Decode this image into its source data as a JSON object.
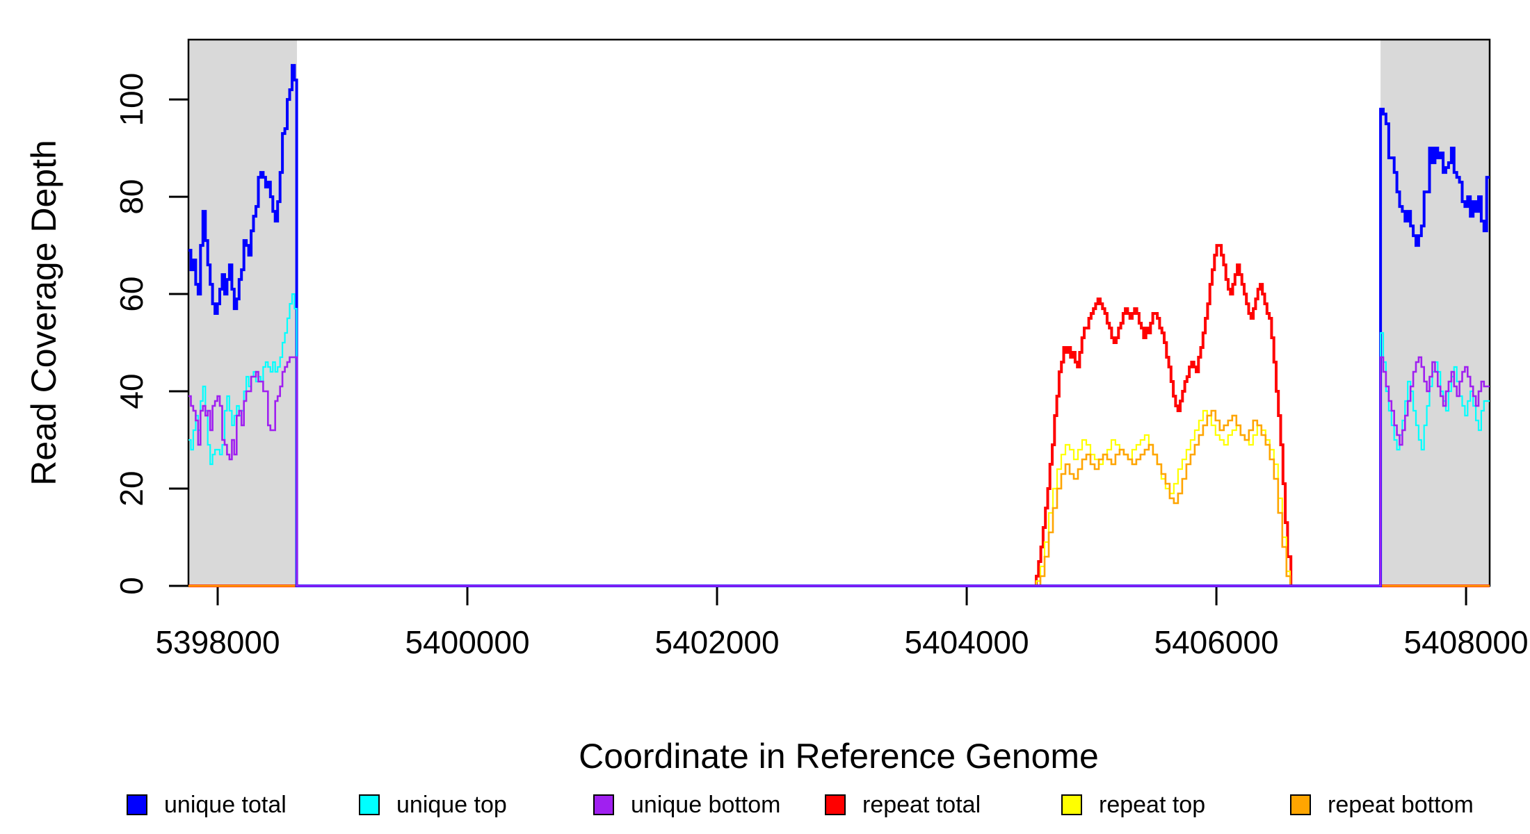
{
  "page": {
    "background": "#ffffff"
  },
  "axes": {
    "x_title": "Coordinate in Reference Genome",
    "y_title": "Read Coverage Depth",
    "x_ticks": [
      {
        "value": 5398000,
        "label": "5398000"
      },
      {
        "value": 5400000,
        "label": "5400000"
      },
      {
        "value": 5402000,
        "label": "5402000"
      },
      {
        "value": 5404000,
        "label": "5404000"
      },
      {
        "value": 5406000,
        "label": "5406000"
      },
      {
        "value": 5408000,
        "label": "5408000"
      }
    ],
    "y_ticks": [
      {
        "value": 0,
        "label": "0"
      },
      {
        "value": 20,
        "label": "20"
      },
      {
        "value": 40,
        "label": "40"
      },
      {
        "value": 60,
        "label": "60"
      },
      {
        "value": 80,
        "label": "80"
      },
      {
        "value": 100,
        "label": "100"
      }
    ]
  },
  "chart_data": {
    "type": "line",
    "style": "step",
    "title": "",
    "xlabel": "Coordinate in Reference Genome",
    "ylabel": "Read Coverage Depth",
    "x_range": [
      5397766,
      5408189
    ],
    "y_range": [
      0,
      112.3
    ],
    "grid": false,
    "legend_position": "bottom",
    "band_color": "#d9d9d9",
    "shaded_bands": [
      {
        "x_start": 5397766,
        "x_end": 5398635
      },
      {
        "x_start": 5407315,
        "x_end": 5408189
      }
    ],
    "draw_order": [
      "repeat total",
      "repeat top",
      "repeat bottom",
      "unique total",
      "unique top",
      "unique bottom"
    ],
    "series": [
      {
        "name": "unique total",
        "color": "#0000ff",
        "line_width": 4,
        "segments": [
          {
            "start": 5397766,
            "step": 19.3,
            "end_zero": 5398633,
            "values": [
              69,
              65,
              67,
              62,
              60,
              70,
              77,
              71,
              66,
              62,
              58,
              56,
              58,
              61,
              64,
              60,
              63,
              66,
              61,
              57,
              59,
              63,
              65,
              71,
              70,
              68,
              73,
              76,
              78,
              84,
              85,
              84,
              82,
              83,
              80,
              77,
              75,
              79,
              85,
              93,
              94,
              100,
              102,
              107,
              104
            ]
          },
          {
            "start": 5407315,
            "step": 21.8,
            "end_zero": null,
            "values": [
              98,
              97,
              95,
              88,
              88,
              85,
              81,
              78,
              77,
              75,
              77,
              74,
              72,
              70,
              72,
              74,
              81,
              81,
              90,
              87,
              90,
              88,
              89,
              85,
              86,
              87,
              90,
              85,
              84,
              83,
              79,
              78,
              80,
              76,
              79,
              77,
              80,
              75,
              73,
              84
            ]
          }
        ]
      },
      {
        "name": "unique top",
        "color": "#00ffff",
        "line_width": 2.2,
        "segments": [
          {
            "start": 5397766,
            "step": 19.3,
            "end_zero": 5398633,
            "values": [
              30,
              28,
              32,
              35,
              32,
              38,
              41,
              36,
              29,
              25,
              27,
              28,
              28,
              27,
              29,
              36,
              39,
              36,
              33,
              35,
              37,
              35,
              36,
              40,
              43,
              41,
              43,
              44,
              42,
              43,
              42,
              45,
              46,
              45,
              44,
              46,
              44,
              45,
              47,
              50,
              52,
              55,
              58,
              60,
              57
            ]
          },
          {
            "start": 5407315,
            "step": 21.8,
            "end_zero": null,
            "values": [
              52,
              46,
              40,
              36,
              33,
              30,
              28,
              31,
              34,
              38,
              42,
              40,
              36,
              33,
              30,
              28,
              33,
              37,
              41,
              44,
              46,
              44,
              40,
              38,
              36,
              40,
              43,
              45,
              42,
              39,
              37,
              35,
              38,
              40,
              37,
              34,
              32,
              36,
              38,
              38
            ]
          }
        ]
      },
      {
        "name": "unique bottom",
        "color": "#a020f0",
        "line_width": 2.6,
        "segments": [
          {
            "start": 5397766,
            "step": 19.3,
            "end_zero": 5398635,
            "values": [
              39,
              37,
              36,
              34,
              29,
              36,
              37,
              35,
              36,
              32,
              37,
              38,
              39,
              37,
              30,
              29,
              27,
              26,
              30,
              27,
              35,
              36,
              33,
              38,
              40,
              40,
              43,
              43,
              44,
              42,
              42,
              40,
              40,
              33,
              32,
              32,
              38,
              39,
              41,
              44,
              45,
              46,
              47,
              47,
              47
            ]
          },
          {
            "start": 5407315,
            "step": 21.8,
            "end_zero": null,
            "values": [
              47,
              44,
              41,
              38,
              36,
              33,
              31,
              29,
              32,
              35,
              38,
              41,
              44,
              46,
              47,
              45,
              42,
              40,
              43,
              46,
              44,
              41,
              39,
              37,
              40,
              42,
              44,
              41,
              39,
              42,
              44,
              45,
              43,
              41,
              39,
              37,
              40,
              42,
              41,
              41
            ]
          }
        ]
      },
      {
        "name": "repeat total",
        "color": "#ff0000",
        "line_width": 4,
        "segments": [
          {
            "start": 5404557,
            "step": 18.3,
            "end_zero": 5406597,
            "values": [
              2,
              5,
              8,
              12,
              16,
              20,
              25,
              29,
              35,
              39,
              44,
              46,
              49,
              48,
              49,
              47,
              48,
              46,
              45,
              48,
              51,
              53,
              53,
              55,
              56,
              57,
              58,
              59,
              58,
              57,
              56,
              54,
              53,
              51,
              50,
              51,
              53,
              54,
              56,
              57,
              56,
              55,
              56,
              57,
              56,
              54,
              53,
              51,
              53,
              52,
              54,
              56,
              56,
              55,
              53,
              52,
              50,
              47,
              45,
              42,
              39,
              37,
              36,
              38,
              40,
              42,
              43,
              45,
              46,
              45,
              44,
              47,
              49,
              52,
              55,
              58,
              62,
              65,
              68,
              70,
              70,
              68,
              66,
              63,
              61,
              60,
              62,
              64,
              66,
              64,
              62,
              60,
              58,
              56,
              55,
              57,
              59,
              61,
              62,
              60,
              58,
              56,
              55,
              51,
              46,
              40,
              35,
              29,
              21,
              13,
              6
            ]
          }
        ]
      },
      {
        "name": "repeat top",
        "color": "#ffff00",
        "line_width": 2.2,
        "segments": [
          {
            "start": 5404557,
            "step": 33.4,
            "end_zero": 5406590,
            "values": [
              1,
              4,
              9,
              15,
              20,
              24,
              27,
              29,
              28,
              26,
              28,
              30,
              29,
              27,
              26,
              25,
              27,
              28,
              30,
              29,
              28,
              27,
              26,
              28,
              29,
              30,
              31,
              29,
              27,
              25,
              22,
              20,
              19,
              21,
              24,
              26,
              28,
              30,
              32,
              34,
              36,
              35,
              33,
              31,
              30,
              29,
              31,
              32,
              33,
              31,
              30,
              29,
              31,
              33,
              32,
              30,
              28,
              25,
              18,
              10,
              3
            ]
          }
        ]
      },
      {
        "name": "repeat bottom",
        "color": "#ffa500",
        "line_width": 2.6,
        "segments": [
          {
            "start": 5404557,
            "step": 33.4,
            "end_zero": 5406592,
            "values": [
              0,
              2,
              6,
              11,
              16,
              20,
              23,
              25,
              23,
              22,
              24,
              26,
              27,
              25,
              24,
              26,
              27,
              26,
              25,
              27,
              28,
              27,
              26,
              25,
              26,
              27,
              28,
              29,
              27,
              25,
              23,
              21,
              18,
              17,
              19,
              22,
              25,
              27,
              29,
              31,
              33,
              35,
              36,
              34,
              32,
              33,
              34,
              35,
              33,
              31,
              30,
              32,
              34,
              33,
              31,
              29,
              26,
              22,
              15,
              8,
              2
            ]
          }
        ]
      }
    ]
  },
  "legend": {
    "items": [
      {
        "label": "unique total",
        "color": "#0000ff"
      },
      {
        "label": "unique top",
        "color": "#00ffff"
      },
      {
        "label": "unique bottom",
        "color": "#a020f0"
      },
      {
        "label": "repeat total",
        "color": "#ff0000"
      },
      {
        "label": "repeat top",
        "color": "#ffff00"
      },
      {
        "label": "repeat bottom",
        "color": "#ffa500"
      }
    ]
  }
}
